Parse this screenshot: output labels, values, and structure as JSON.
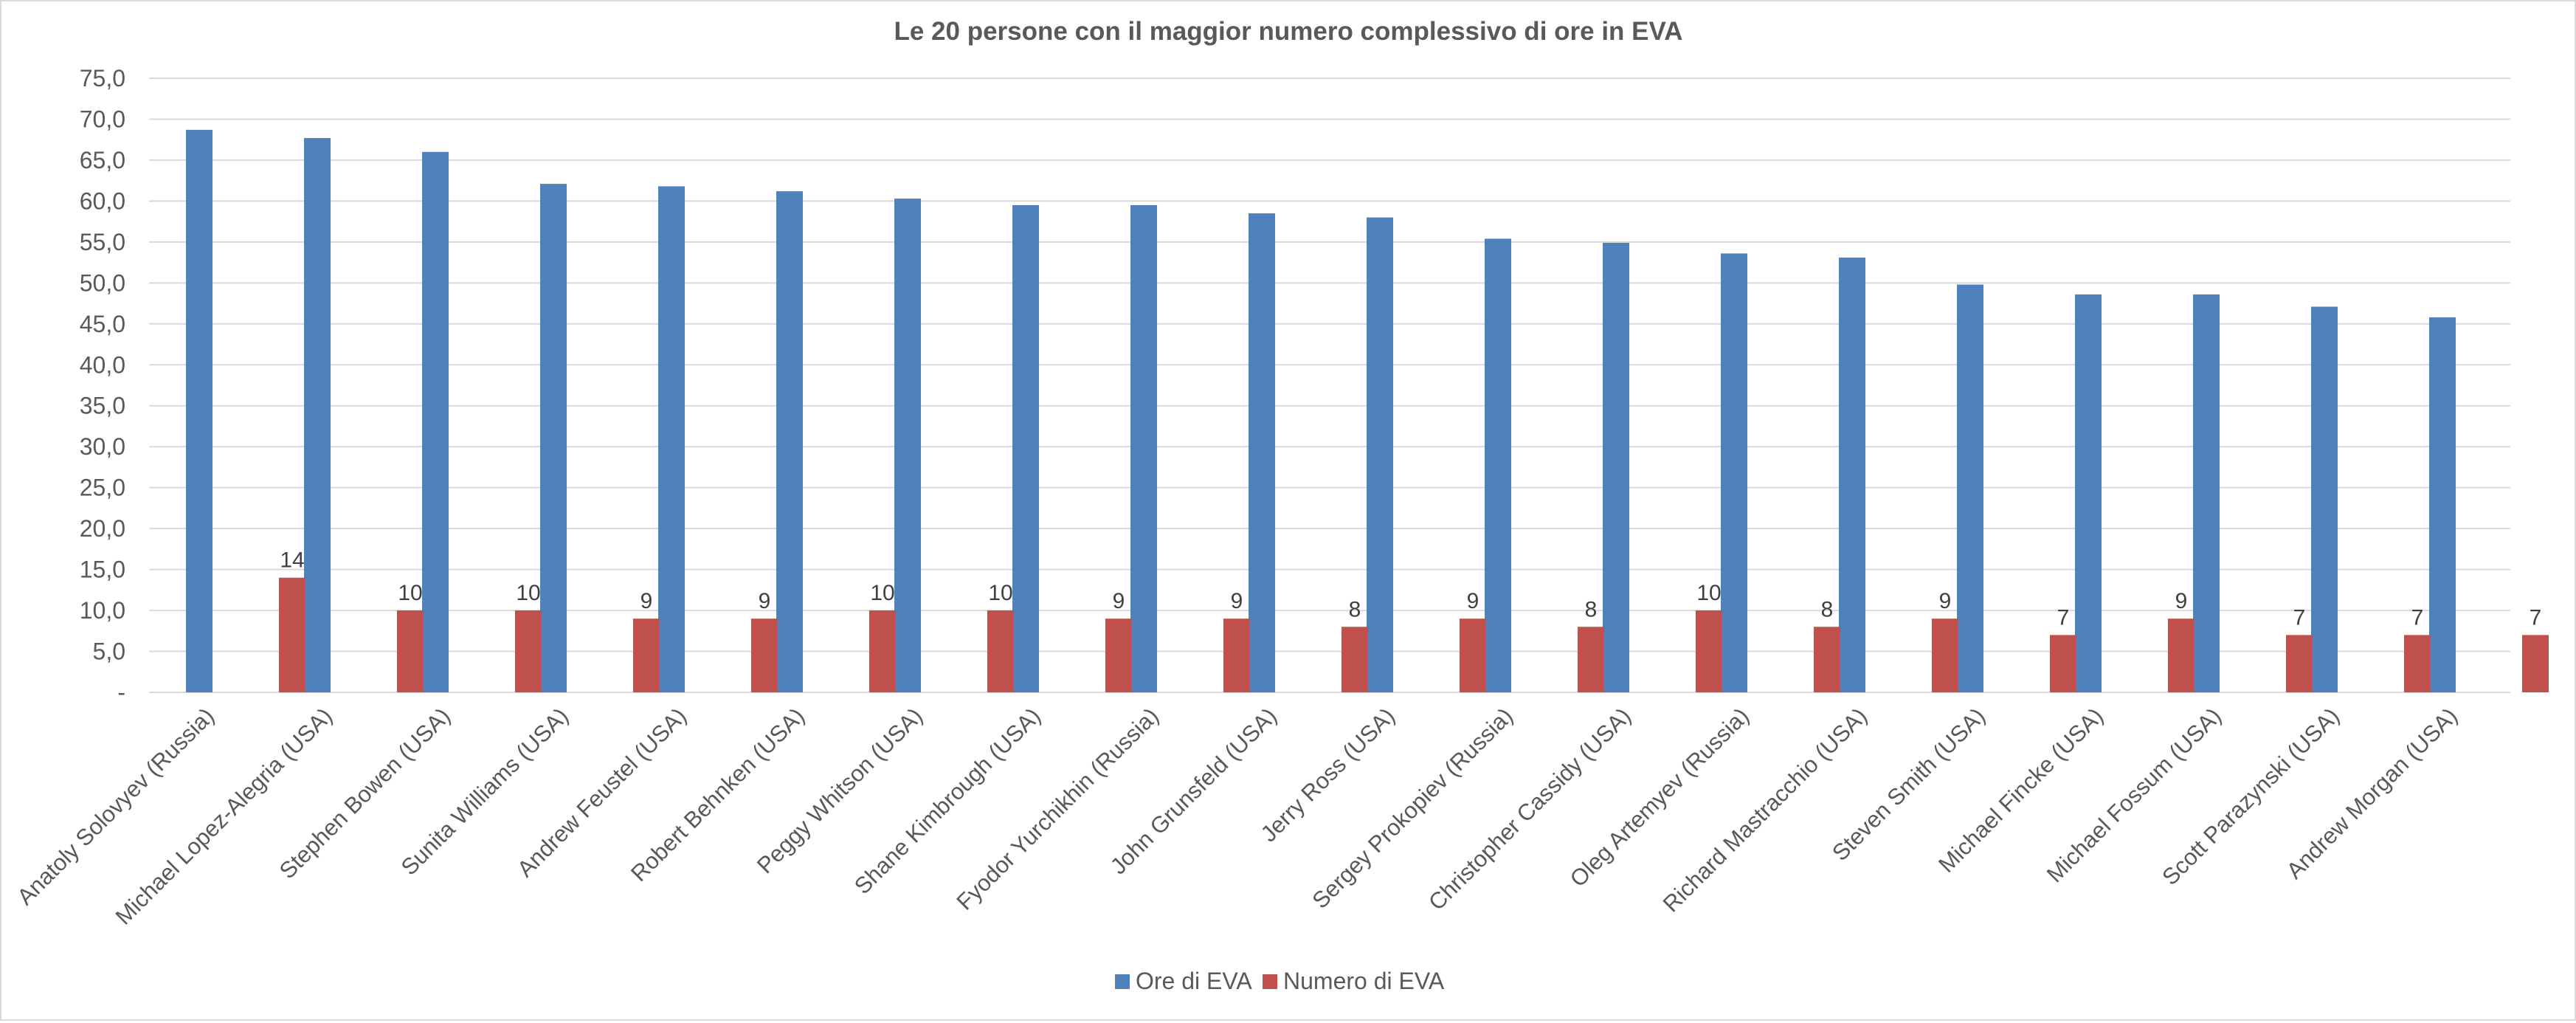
{
  "chart_data": {
    "type": "bar",
    "title": "Le 20 persone con il maggior numero complessivo di ore in EVA",
    "xlabel": "",
    "ylabel": "",
    "categories": [
      "Anatoly Solovyev (Russia)",
      "Michael Lopez-Alegria (USA)",
      "Stephen Bowen (USA)",
      "Sunita Williams (USA)",
      "Andrew Feustel (USA)",
      "Robert Behnken (USA)",
      "Peggy Whitson (USA)",
      "Shane Kimbrough (USA)",
      "Fyodor Yurchikhin (Russia)",
      "John Grunsfeld (USA)",
      "Jerry Ross (USA)",
      "Sergey Prokopiev (Russia)",
      "Christopher Cassidy (USA)",
      "Oleg Artemyev (Russia)",
      "Richard Mastracchio (USA)",
      "Steven Smith (USA)",
      "Michael Fincke (USA)",
      "Michael Fossum (USA)",
      "Scott Parazynski (USA)",
      "Andrew Morgan (USA)"
    ],
    "series": [
      {
        "name": "Ore di EVA",
        "color": "#4f81bd",
        "values": [
          68.7,
          67.7,
          66.0,
          62.1,
          61.8,
          61.2,
          60.3,
          59.5,
          59.5,
          58.5,
          58.0,
          55.4,
          54.9,
          53.6,
          53.1,
          49.8,
          48.6,
          48.6,
          47.1,
          45.8
        ],
        "show_labels": false
      },
      {
        "name": "Numero di EVA",
        "color": "#c0504d",
        "values": [
          14,
          10,
          10,
          9,
          9,
          10,
          10,
          9,
          9,
          8,
          9,
          8,
          10,
          8,
          9,
          7,
          9,
          7,
          7,
          7
        ],
        "show_labels": true
      }
    ],
    "yticks": [
      "-",
      "5,0",
      "10,0",
      "15,0",
      "20,0",
      "25,0",
      "30,0",
      "35,0",
      "40,0",
      "45,0",
      "50,0",
      "55,0",
      "60,0",
      "65,0",
      "70,0",
      "75,0"
    ],
    "ylim": [
      0,
      75
    ],
    "ytick_step": 5,
    "grid": true,
    "legend": "bottom"
  }
}
